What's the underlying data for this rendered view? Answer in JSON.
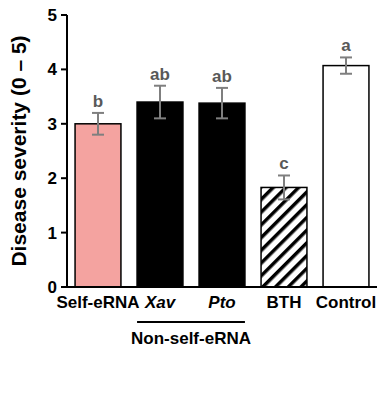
{
  "chart_data": {
    "type": "bar",
    "y_label": "Disease severity (0 – 5)",
    "categories": [
      "Self-eRNA",
      "Xav",
      "Pto",
      "BTH",
      "Control"
    ],
    "values": [
      3.0,
      3.4,
      3.38,
      1.83,
      4.07
    ],
    "errors": [
      0.2,
      0.3,
      0.28,
      0.22,
      0.15
    ],
    "annotations": [
      "b",
      "ab",
      "ab",
      "c",
      "a"
    ],
    "groups": [
      {
        "label": "Non-self-eRNA",
        "from": "Xav",
        "to": "Pto"
      }
    ],
    "colors": [
      "#f4a3a0",
      "#000000",
      "#000000",
      "hatch",
      "#ffffff"
    ],
    "ylim": [
      0,
      5
    ],
    "yticks": [
      0,
      1,
      2,
      3,
      4,
      5
    ],
    "grid": false
  }
}
